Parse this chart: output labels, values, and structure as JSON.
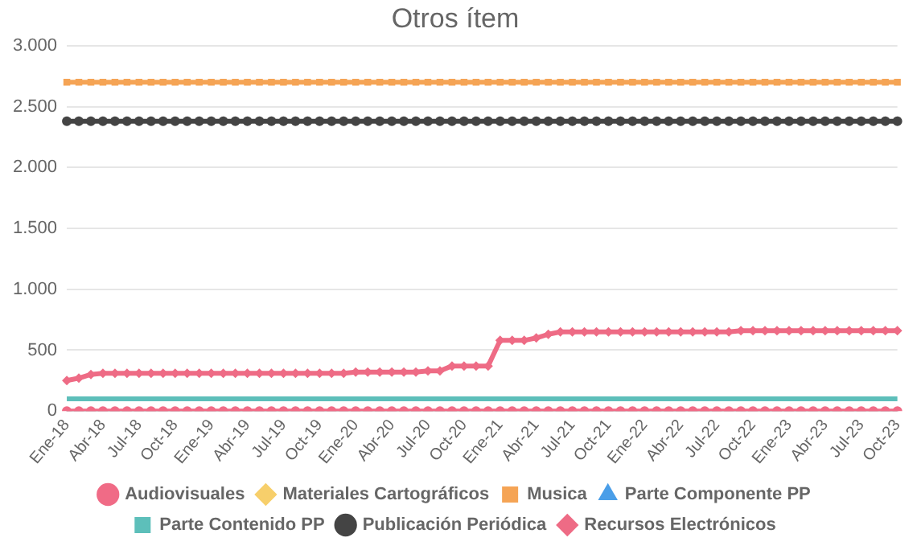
{
  "chart_data": {
    "type": "line",
    "title": "Otros ítem",
    "categories": [
      "Ene-18",
      null,
      null,
      "Abr-18",
      null,
      null,
      "Jul-18",
      null,
      null,
      "Oct-18",
      null,
      null,
      "Ene-19",
      null,
      null,
      "Abr-19",
      null,
      null,
      "Jul-19",
      null,
      null,
      "Oct-19",
      null,
      null,
      "Ene-20",
      null,
      null,
      "Abr-20",
      null,
      null,
      "Jul-20",
      null,
      null,
      "Oct-20",
      null,
      null,
      "Ene-21",
      null,
      null,
      "Abr-21",
      null,
      null,
      "Jul-21",
      null,
      null,
      "Oct-21",
      null,
      null,
      "Ene-22",
      null,
      null,
      "Abr-22",
      null,
      null,
      "Jul-22",
      null,
      null,
      "Oct-22",
      null,
      null,
      "Ene-23",
      null,
      null,
      "Abr-23",
      null,
      null,
      "Jul-23",
      null,
      null,
      "Oct-23"
    ],
    "ylim": [
      0,
      3000
    ],
    "yticks": [
      {
        "value": 0,
        "label": "0"
      },
      {
        "value": 500,
        "label": "500"
      },
      {
        "value": 1000,
        "label": "1.000"
      },
      {
        "value": 1500,
        "label": "1.500"
      },
      {
        "value": 2000,
        "label": "2.000"
      },
      {
        "value": 2500,
        "label": "2.500"
      },
      {
        "value": 3000,
        "label": "3.000"
      }
    ],
    "grid": "y",
    "legend": "bottom",
    "series": [
      {
        "name": "Audiovisuales",
        "color": "#f06b86",
        "marker": "circle",
        "values": [
          0,
          0,
          0,
          0,
          0,
          0,
          0,
          0,
          0,
          0,
          0,
          0,
          0,
          0,
          0,
          0,
          0,
          0,
          0,
          0,
          0,
          0,
          0,
          0,
          0,
          0,
          0,
          0,
          0,
          0,
          0,
          0,
          0,
          0,
          0,
          0,
          0,
          0,
          0,
          0,
          0,
          0,
          0,
          0,
          0,
          0,
          0,
          0,
          0,
          0,
          0,
          0,
          0,
          0,
          0,
          0,
          0,
          0,
          0,
          0,
          0,
          0,
          0,
          0,
          0,
          0,
          0,
          0,
          0,
          0
        ]
      },
      {
        "name": "Materiales Cartográficos",
        "color": "#f7cf6b",
        "marker": "diamond",
        "values": [
          null,
          null,
          null,
          null,
          null,
          null,
          null,
          null,
          null,
          null,
          null,
          null,
          null,
          null,
          null,
          null,
          null,
          null,
          null,
          null,
          null,
          null,
          null,
          null,
          null,
          null,
          null,
          null,
          null,
          null,
          null,
          null,
          null,
          null,
          null,
          null,
          null,
          null,
          null,
          null,
          null,
          null,
          null,
          null,
          null,
          null,
          null,
          null,
          null,
          null,
          null,
          null,
          null,
          null,
          null,
          null,
          null,
          null,
          null,
          null,
          null,
          null,
          null,
          null,
          null,
          null,
          null,
          null,
          null,
          null
        ]
      },
      {
        "name": "Musica",
        "color": "#f5a455",
        "marker": "square",
        "values": [
          2700,
          2700,
          2700,
          2700,
          2700,
          2700,
          2700,
          2700,
          2700,
          2700,
          2700,
          2700,
          2700,
          2700,
          2700,
          2700,
          2700,
          2700,
          2700,
          2700,
          2700,
          2700,
          2700,
          2700,
          2700,
          2700,
          2700,
          2700,
          2700,
          2700,
          2700,
          2700,
          2700,
          2700,
          2700,
          2700,
          2700,
          2700,
          2700,
          2700,
          2700,
          2700,
          2700,
          2700,
          2700,
          2700,
          2700,
          2700,
          2700,
          2700,
          2700,
          2700,
          2700,
          2700,
          2700,
          2700,
          2700,
          2700,
          2700,
          2700,
          2700,
          2700,
          2700,
          2700,
          2700,
          2700,
          2700,
          2700,
          2700,
          2700
        ]
      },
      {
        "name": "Parte Componente PP",
        "color": "#4a9ee8",
        "marker": "triangle",
        "values": [
          null,
          null,
          null,
          null,
          null,
          null,
          null,
          null,
          null,
          null,
          null,
          null,
          null,
          null,
          null,
          null,
          null,
          null,
          null,
          null,
          null,
          null,
          null,
          null,
          null,
          null,
          null,
          null,
          null,
          null,
          null,
          null,
          null,
          null,
          null,
          null,
          null,
          null,
          null,
          null,
          null,
          null,
          null,
          null,
          null,
          null,
          null,
          null,
          null,
          null,
          null,
          null,
          null,
          null,
          null,
          null,
          null,
          null,
          null,
          null,
          null,
          null,
          null,
          null,
          null,
          null,
          null,
          null,
          null,
          null
        ]
      },
      {
        "name": "Parte Contenido PP",
        "color": "#5dbfba",
        "marker": "none",
        "values": [
          100,
          100,
          100,
          100,
          100,
          100,
          100,
          100,
          100,
          100,
          100,
          100,
          100,
          100,
          100,
          100,
          100,
          100,
          100,
          100,
          100,
          100,
          100,
          100,
          100,
          100,
          100,
          100,
          100,
          100,
          100,
          100,
          100,
          100,
          100,
          100,
          100,
          100,
          100,
          100,
          100,
          100,
          100,
          100,
          100,
          100,
          100,
          100,
          100,
          100,
          100,
          100,
          100,
          100,
          100,
          100,
          100,
          100,
          100,
          100,
          100,
          100,
          100,
          100,
          100,
          100,
          100,
          100,
          100,
          100
        ]
      },
      {
        "name": "Publicación Periódica",
        "color": "#444444",
        "marker": "circle",
        "values": [
          2380,
          2380,
          2380,
          2380,
          2380,
          2380,
          2380,
          2380,
          2380,
          2380,
          2380,
          2380,
          2380,
          2380,
          2380,
          2380,
          2380,
          2380,
          2380,
          2380,
          2380,
          2380,
          2380,
          2380,
          2380,
          2380,
          2380,
          2380,
          2380,
          2380,
          2380,
          2380,
          2380,
          2380,
          2380,
          2380,
          2380,
          2380,
          2380,
          2380,
          2380,
          2380,
          2380,
          2380,
          2380,
          2380,
          2380,
          2380,
          2380,
          2380,
          2380,
          2380,
          2380,
          2380,
          2380,
          2380,
          2380,
          2380,
          2380,
          2380,
          2380,
          2380,
          2380,
          2380,
          2380,
          2380,
          2380,
          2380,
          2380,
          2380
        ]
      },
      {
        "name": "Recursos Electrónicos",
        "color": "#ee6b85",
        "marker": "diamond",
        "values": [
          250,
          270,
          300,
          310,
          310,
          310,
          310,
          310,
          310,
          310,
          310,
          310,
          310,
          310,
          310,
          310,
          310,
          310,
          310,
          310,
          310,
          310,
          310,
          310,
          320,
          320,
          320,
          320,
          320,
          320,
          330,
          330,
          370,
          370,
          370,
          370,
          580,
          580,
          580,
          600,
          630,
          650,
          650,
          650,
          650,
          650,
          650,
          650,
          650,
          650,
          650,
          650,
          650,
          650,
          650,
          650,
          660,
          660,
          660,
          660,
          660,
          660,
          660,
          660,
          660,
          660,
          660,
          660,
          660,
          660
        ]
      }
    ]
  }
}
